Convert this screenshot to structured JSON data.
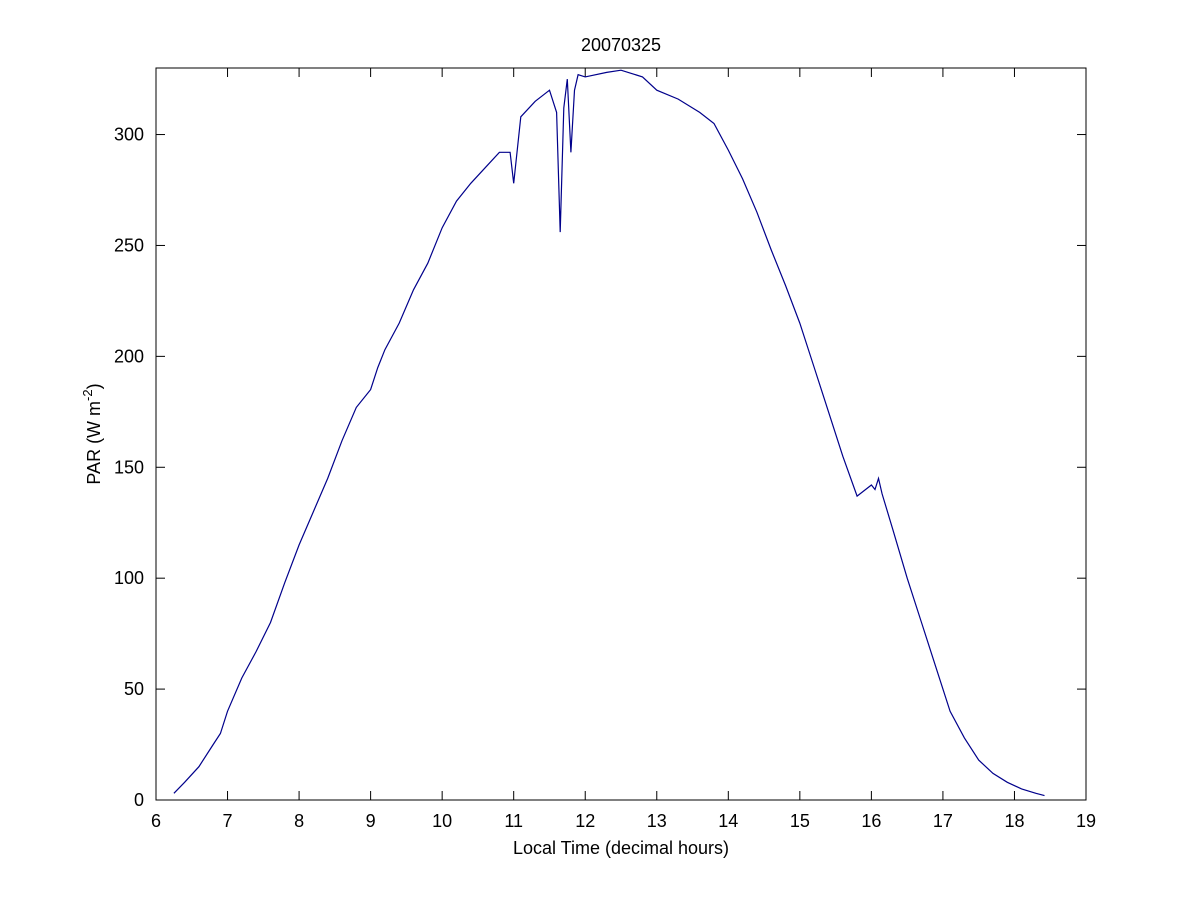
{
  "chart_data": {
    "type": "line",
    "title": "20070325",
    "xlabel": "Local Time (decimal hours)",
    "ylabel": {
      "main": "PAR (W m",
      "superscript": "-2",
      "suffix": ")"
    },
    "xlim": [
      6,
      19
    ],
    "ylim": [
      0,
      330
    ],
    "xticks": [
      6,
      7,
      8,
      9,
      10,
      11,
      12,
      13,
      14,
      15,
      16,
      17,
      18,
      19
    ],
    "yticks": [
      0,
      50,
      100,
      150,
      200,
      250,
      300
    ],
    "grid": false,
    "line_color": "#00008b",
    "series": [
      {
        "x": [
          6.25,
          6.4,
          6.6,
          6.8,
          6.9,
          7.0,
          7.2,
          7.4,
          7.6,
          7.8,
          8.0,
          8.2,
          8.4,
          8.6,
          8.8,
          9.0,
          9.1,
          9.2,
          9.4,
          9.6,
          9.8,
          10.0,
          10.2,
          10.4,
          10.6,
          10.8,
          10.95,
          11.0,
          11.1,
          11.3,
          11.5,
          11.6,
          11.65,
          11.7,
          11.75,
          11.8,
          11.85,
          11.9,
          12.0,
          12.3,
          12.5,
          12.8,
          13.0,
          13.3,
          13.6,
          13.8,
          14.0,
          14.2,
          14.4,
          14.6,
          14.8,
          15.0,
          15.2,
          15.4,
          15.6,
          15.8,
          16.0,
          16.05,
          16.1,
          16.15,
          16.3,
          16.5,
          16.7,
          16.9,
          17.1,
          17.3,
          17.5,
          17.7,
          17.9,
          18.1,
          18.3,
          18.42
        ],
        "y": [
          3,
          8,
          15,
          25,
          30,
          40,
          55,
          67,
          80,
          98,
          115,
          130,
          145,
          162,
          177,
          185,
          195,
          203,
          215,
          230,
          242,
          258,
          270,
          278,
          285,
          292,
          292,
          278,
          308,
          315,
          320,
          310,
          256,
          312,
          325,
          292,
          320,
          327,
          326,
          328,
          329,
          326,
          320,
          316,
          310,
          305,
          293,
          280,
          265,
          248,
          232,
          215,
          195,
          175,
          155,
          137,
          142,
          140,
          145,
          138,
          122,
          100,
          80,
          60,
          40,
          28,
          18,
          12,
          8,
          5,
          3,
          2
        ]
      }
    ]
  }
}
